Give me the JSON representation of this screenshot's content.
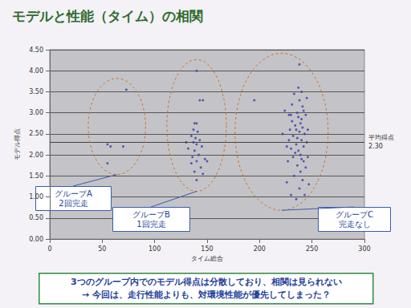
{
  "chart_data": {
    "type": "scatter",
    "title": "モデルと性能（タイム）の相関",
    "x_label": "タイム総合",
    "y_label": "モデル得点",
    "xlim": [
      0,
      300
    ],
    "xticks": [
      0,
      50,
      100,
      150,
      200,
      250,
      300
    ],
    "ylim": [
      0,
      4.5
    ],
    "yticks": [
      {
        "value": 0,
        "label": "0.00"
      },
      {
        "value": 0.5,
        "label": "0.50"
      },
      {
        "value": 1,
        "label": "1.00"
      },
      {
        "value": 1.5,
        "label": "1.50"
      },
      {
        "value": 2,
        "label": "2.00"
      },
      {
        "value": 2.5,
        "label": "2.50"
      },
      {
        "value": 3,
        "label": "3.00"
      },
      {
        "value": 3.5,
        "label": "3.50"
      },
      {
        "value": 4,
        "label": "4.00"
      },
      {
        "value": 4.5,
        "label": "4.50"
      }
    ],
    "grid": true,
    "color": "#3c3ca8",
    "marker": "circle",
    "reference_line": {
      "value": 2.3,
      "label": "平均得点",
      "value_label": "2.30"
    },
    "series": [
      {
        "name": "グループA",
        "note": "2回完走",
        "x": [
          55,
          58,
          70,
          73,
          55
        ],
        "y": [
          2.25,
          2.2,
          2.2,
          3.55,
          1.8
        ]
      },
      {
        "name": "グループB",
        "note": "1回完走",
        "x": [
          140,
          143,
          146,
          138,
          140,
          137,
          141,
          135,
          139,
          143,
          137,
          140,
          145,
          132,
          138,
          142,
          136,
          148,
          140,
          150,
          135,
          144,
          138,
          146,
          140,
          130
        ],
        "y": [
          4.0,
          3.3,
          3.3,
          2.75,
          2.75,
          2.6,
          2.55,
          2.45,
          2.4,
          2.35,
          2.3,
          2.25,
          2.2,
          2.15,
          2.1,
          2.0,
          1.95,
          1.9,
          1.85,
          1.85,
          1.8,
          1.7,
          1.6,
          1.55,
          1.4,
          2.3
        ]
      },
      {
        "name": "グループC",
        "note": "完走なし",
        "x": [
          195,
          222,
          224,
          226,
          226,
          227,
          228,
          228,
          229,
          230,
          230,
          231,
          231,
          232,
          232,
          233,
          233,
          234,
          234,
          235,
          235,
          236,
          236,
          236,
          237,
          237,
          237,
          238,
          238,
          238,
          238,
          239,
          239,
          239,
          240,
          240,
          240,
          240,
          241,
          241,
          241,
          242,
          242,
          242,
          243,
          243,
          244,
          244,
          245,
          245,
          246,
          246,
          247,
          235,
          230
        ],
        "y": [
          3.3,
          2.5,
          3.05,
          2.2,
          1.35,
          1.85,
          2.95,
          2.35,
          2.6,
          2.15,
          1.05,
          3.2,
          2.8,
          1.95,
          2.45,
          3.45,
          1.5,
          2.05,
          2.7,
          2.25,
          0.95,
          3.0,
          2.4,
          1.75,
          2.9,
          3.6,
          2.1,
          4.15,
          2.55,
          1.2,
          3.3,
          2.75,
          2.0,
          1.6,
          3.5,
          2.35,
          2.85,
          1.9,
          3.15,
          2.65,
          1.4,
          2.2,
          3.05,
          1.85,
          2.5,
          1.05,
          2.95,
          1.7,
          2.3,
          3.35,
          2.6,
          1.95,
          1.3,
          2.6,
          2.95
        ]
      }
    ],
    "notes": [
      "3つのグループ内でのモデル得点は分散しており、相関は見られない",
      "→ 今回は、走行性能よりも、対環境性能が優先してしまった？"
    ]
  }
}
